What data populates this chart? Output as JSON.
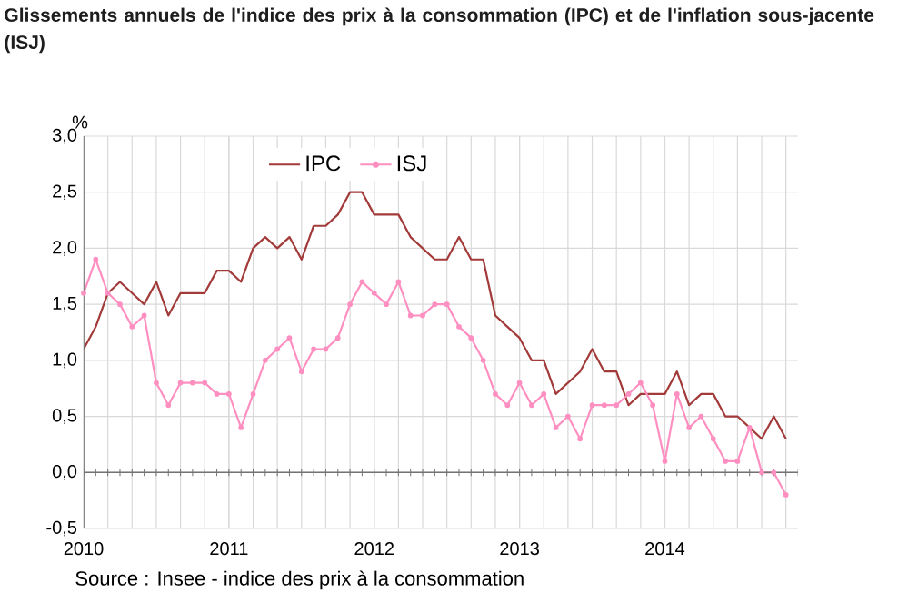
{
  "chart_data": {
    "type": "line",
    "title": "Glissements annuels de l'indice des prix à la consommation (IPC) et de l'inflation sous-jacente (ISJ)",
    "ylabel": "%",
    "annotations": [
      "Source : Insee - indice des prix à la consommation"
    ],
    "x": [
      "2010-01",
      "2010-02",
      "2010-03",
      "2010-04",
      "2010-05",
      "2010-06",
      "2010-07",
      "2010-08",
      "2010-09",
      "2010-10",
      "2010-11",
      "2010-12",
      "2011-01",
      "2011-02",
      "2011-03",
      "2011-04",
      "2011-05",
      "2011-06",
      "2011-07",
      "2011-08",
      "2011-09",
      "2011-10",
      "2011-11",
      "2011-12",
      "2012-01",
      "2012-02",
      "2012-03",
      "2012-04",
      "2012-05",
      "2012-06",
      "2012-07",
      "2012-08",
      "2012-09",
      "2012-10",
      "2012-11",
      "2012-12",
      "2013-01",
      "2013-02",
      "2013-03",
      "2013-04",
      "2013-05",
      "2013-06",
      "2013-07",
      "2013-08",
      "2013-09",
      "2013-10",
      "2013-11",
      "2013-12",
      "2014-01",
      "2014-02",
      "2014-03",
      "2014-04",
      "2014-05",
      "2014-06",
      "2014-07",
      "2014-08",
      "2014-09",
      "2014-10",
      "2014-11"
    ],
    "series": [
      {
        "name": "IPC",
        "color": "#a33a3a",
        "marker": "none",
        "values": [
          1.1,
          1.3,
          1.6,
          1.7,
          1.6,
          1.5,
          1.7,
          1.4,
          1.6,
          1.6,
          1.6,
          1.8,
          1.8,
          1.7,
          2.0,
          2.1,
          2.0,
          2.1,
          1.9,
          2.2,
          2.2,
          2.3,
          2.5,
          2.5,
          2.3,
          2.3,
          2.3,
          2.1,
          2.0,
          1.9,
          1.9,
          2.1,
          1.9,
          1.9,
          1.4,
          1.3,
          1.2,
          1.0,
          1.0,
          0.7,
          0.8,
          0.9,
          1.1,
          0.9,
          0.9,
          0.6,
          0.7,
          0.7,
          0.7,
          0.9,
          0.6,
          0.7,
          0.7,
          0.5,
          0.5,
          0.4,
          0.3,
          0.5,
          0.3
        ]
      },
      {
        "name": "ISJ",
        "color": "#ff8fc0",
        "marker": "circle",
        "values": [
          1.6,
          1.9,
          1.6,
          1.5,
          1.3,
          1.4,
          0.8,
          0.6,
          0.8,
          0.8,
          0.8,
          0.7,
          0.7,
          0.4,
          0.7,
          1.0,
          1.1,
          1.2,
          0.9,
          1.1,
          1.1,
          1.2,
          1.5,
          1.7,
          1.6,
          1.5,
          1.7,
          1.4,
          1.4,
          1.5,
          1.5,
          1.3,
          1.2,
          1.0,
          0.7,
          0.6,
          0.8,
          0.6,
          0.7,
          0.4,
          0.5,
          0.3,
          0.6,
          0.6,
          0.6,
          0.7,
          0.8,
          0.6,
          0.1,
          0.7,
          0.4,
          0.5,
          0.3,
          0.1,
          0.1,
          0.4,
          0.0,
          0.0,
          -0.2
        ]
      }
    ],
    "xlim": [
      "2010-01",
      "2014-12"
    ],
    "xticks": [
      {
        "value": "2010-01",
        "label": "2010"
      },
      {
        "value": "2011-01",
        "label": "2011"
      },
      {
        "value": "2012-01",
        "label": "2012"
      },
      {
        "value": "2013-01",
        "label": "2013"
      },
      {
        "value": "2014-01",
        "label": "2014"
      }
    ],
    "ylim": [
      -0.5,
      3.0
    ],
    "yticks": [
      {
        "value": -0.5,
        "label": "-0,5"
      },
      {
        "value": 0.0,
        "label": "0,0"
      },
      {
        "value": 0.5,
        "label": "0,5"
      },
      {
        "value": 1.0,
        "label": "1,0"
      },
      {
        "value": 1.5,
        "label": "1,5"
      },
      {
        "value": 2.0,
        "label": "2,0"
      },
      {
        "value": 2.5,
        "label": "2,5"
      },
      {
        "value": 3.0,
        "label": "3,0"
      }
    ],
    "grid": true,
    "legend": "top",
    "line_style": "solid"
  }
}
